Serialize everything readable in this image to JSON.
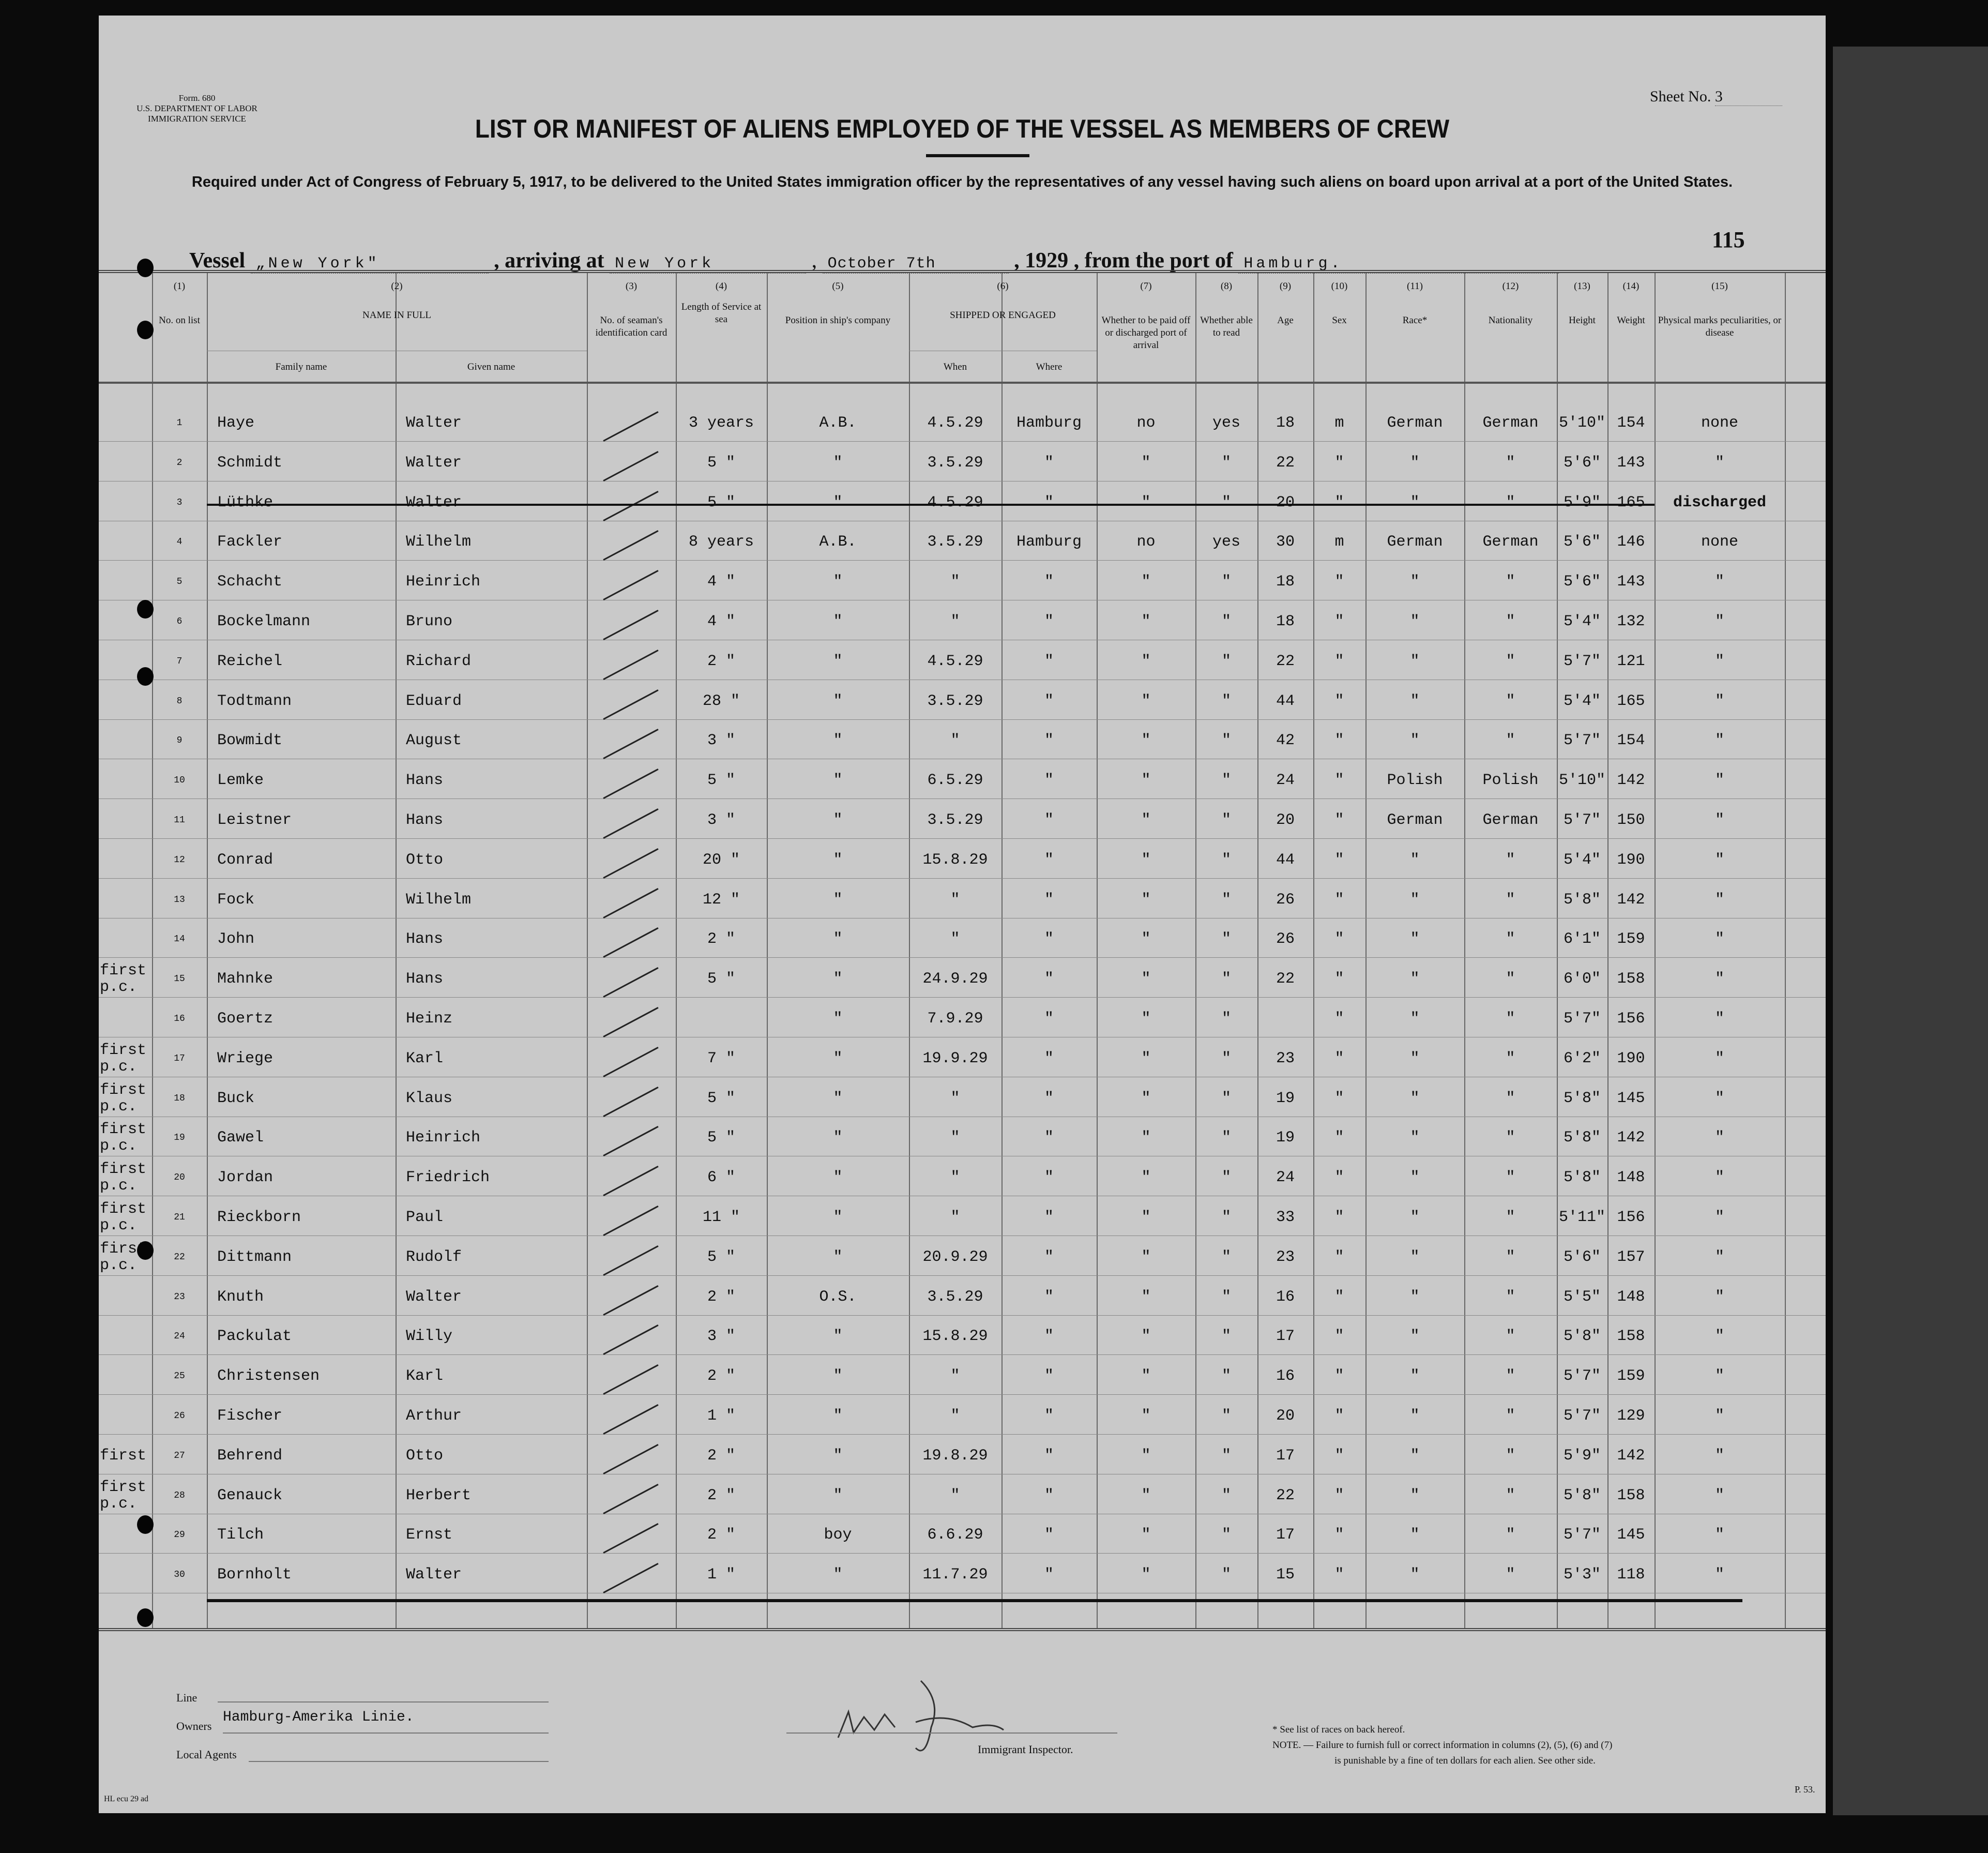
{
  "form": {
    "number": "Form. 680",
    "dept": "U.S. DEPARTMENT OF LABOR",
    "service": "IMMIGRATION SERVICE"
  },
  "sheet": {
    "label": "Sheet No.",
    "value": "3"
  },
  "title": "LIST OR MANIFEST OF ALIENS EMPLOYED OF THE VESSEL AS MEMBERS OF CREW",
  "subtitle": "Required under Act of Congress of February 5, 1917, to be delivered to the United States immigration officer by the representatives of any vessel having such aliens on board upon arrival at a port of the United States.",
  "page_number": "115",
  "vessel": {
    "label": "Vessel",
    "name": "„New York\"",
    "arriving_label": ", arriving at",
    "arriving": "New York",
    "comma": ",",
    "date": "October 7th",
    "year_label": ", 19",
    "year": "29",
    "from_label": ", from the port of",
    "port": "Hamburg."
  },
  "columns": [
    {
      "num": "(1)",
      "label": "No. on list"
    },
    {
      "num": "(2)",
      "label": "NAME IN FULL",
      "sub": [
        "Family name",
        "Given name"
      ]
    },
    {
      "num": "(3)",
      "label": "No. of seaman's identification card"
    },
    {
      "num": "(4)",
      "label": "Length of Service at sea"
    },
    {
      "num": "(5)",
      "label": "Position in ship's company"
    },
    {
      "num": "(6)",
      "label": "SHIPPED OR ENGAGED",
      "sub": [
        "When",
        "Where"
      ]
    },
    {
      "num": "(7)",
      "label": "Whether to be paid off or discharged port of arrival"
    },
    {
      "num": "(8)",
      "label": "Whether able to read"
    },
    {
      "num": "(9)",
      "label": "Age"
    },
    {
      "num": "(10)",
      "label": "Sex"
    },
    {
      "num": "(11)",
      "label": "Race*"
    },
    {
      "num": "(12)",
      "label": "Nationality"
    },
    {
      "num": "(13)",
      "label": "Height"
    },
    {
      "num": "(14)",
      "label": "Weight"
    },
    {
      "num": "(15)",
      "label": "Physical marks peculiarities, or disease"
    }
  ],
  "rows": [
    {
      "no": "1",
      "note": "",
      "family": "Haye",
      "given": "Walter",
      "length": "3 years",
      "position": "A.B.",
      "when": "4.5.29",
      "where": "Hamburg",
      "paid": "no",
      "read": "yes",
      "age": "18",
      "sex": "m",
      "race": "German",
      "nationality": "German",
      "height": "5'10\"",
      "weight": "154",
      "marks": "none"
    },
    {
      "no": "2",
      "note": "",
      "family": "Schmidt",
      "given": "Walter",
      "length": "5 \"",
      "position": "\"",
      "when": "3.5.29",
      "where": "\"",
      "paid": "\"",
      "read": "\"",
      "age": "22",
      "sex": "\"",
      "race": "\"",
      "nationality": "\"",
      "height": "5'6\"",
      "weight": "143",
      "marks": "\""
    },
    {
      "no": "3",
      "note": "",
      "family": "Lüthke",
      "given": "Walter",
      "length": "5 \"",
      "position": "\"",
      "when": "4.5.29",
      "where": "\"",
      "paid": "\"",
      "read": "\"",
      "age": "20",
      "sex": "\"",
      "race": "\"",
      "nationality": "\"",
      "height": "5'9\"",
      "weight": "165",
      "marks": "discharged",
      "struck": true
    },
    {
      "no": "4",
      "note": "",
      "family": "Fackler",
      "given": "Wilhelm",
      "length": "8 years",
      "position": "A.B.",
      "when": "3.5.29",
      "where": "Hamburg",
      "paid": "no",
      "read": "yes",
      "age": "30",
      "sex": "m",
      "race": "German",
      "nationality": "German",
      "height": "5'6\"",
      "weight": "146",
      "marks": "none"
    },
    {
      "no": "5",
      "note": "",
      "family": "Schacht",
      "given": "Heinrich",
      "length": "4 \"",
      "position": "\"",
      "when": "\"",
      "where": "\"",
      "paid": "\"",
      "read": "\"",
      "age": "18",
      "sex": "\"",
      "race": "\"",
      "nationality": "\"",
      "height": "5'6\"",
      "weight": "143",
      "marks": "\""
    },
    {
      "no": "6",
      "note": "",
      "family": "Bockelmann",
      "given": "Bruno",
      "length": "4 \"",
      "position": "\"",
      "when": "\"",
      "where": "\"",
      "paid": "\"",
      "read": "\"",
      "age": "18",
      "sex": "\"",
      "race": "\"",
      "nationality": "\"",
      "height": "5'4\"",
      "weight": "132",
      "marks": "\""
    },
    {
      "no": "7",
      "note": "",
      "family": "Reichel",
      "given": "Richard",
      "length": "2 \"",
      "position": "\"",
      "when": "4.5.29",
      "where": "\"",
      "paid": "\"",
      "read": "\"",
      "age": "22",
      "sex": "\"",
      "race": "\"",
      "nationality": "\"",
      "height": "5'7\"",
      "weight": "121",
      "marks": "\""
    },
    {
      "no": "8",
      "note": "",
      "family": "Todtmann",
      "given": "Eduard",
      "length": "28 \"",
      "position": "\"",
      "when": "3.5.29",
      "where": "\"",
      "paid": "\"",
      "read": "\"",
      "age": "44",
      "sex": "\"",
      "race": "\"",
      "nationality": "\"",
      "height": "5'4\"",
      "weight": "165",
      "marks": "\""
    },
    {
      "no": "9",
      "note": "",
      "family": "Bowmidt",
      "given": "August",
      "length": "3 \"",
      "position": "\"",
      "when": "\"",
      "where": "\"",
      "paid": "\"",
      "read": "\"",
      "age": "42",
      "sex": "\"",
      "race": "\"",
      "nationality": "\"",
      "height": "5'7\"",
      "weight": "154",
      "marks": "\""
    },
    {
      "no": "10",
      "note": "",
      "family": "Lemke",
      "given": "Hans",
      "length": "5 \"",
      "position": "\"",
      "when": "6.5.29",
      "where": "\"",
      "paid": "\"",
      "read": "\"",
      "age": "24",
      "sex": "\"",
      "race": "Polish",
      "nationality": "Polish",
      "height": "5'10\"",
      "weight": "142",
      "marks": "\""
    },
    {
      "no": "11",
      "note": "",
      "family": "Leistner",
      "given": "Hans",
      "length": "3 \"",
      "position": "\"",
      "when": "3.5.29",
      "where": "\"",
      "paid": "\"",
      "read": "\"",
      "age": "20",
      "sex": "\"",
      "race": "German",
      "nationality": "German",
      "height": "5'7\"",
      "weight": "150",
      "marks": "\""
    },
    {
      "no": "12",
      "note": "",
      "family": "Conrad",
      "given": "Otto",
      "length": "20 \"",
      "position": "\"",
      "when": "15.8.29",
      "where": "\"",
      "paid": "\"",
      "read": "\"",
      "age": "44",
      "sex": "\"",
      "race": "\"",
      "nationality": "\"",
      "height": "5'4\"",
      "weight": "190",
      "marks": "\""
    },
    {
      "no": "13",
      "note": "",
      "family": "Fock",
      "given": "Wilhelm",
      "length": "12 \"",
      "position": "\"",
      "when": "\"",
      "where": "\"",
      "paid": "\"",
      "read": "\"",
      "age": "26",
      "sex": "\"",
      "race": "\"",
      "nationality": "\"",
      "height": "5'8\"",
      "weight": "142",
      "marks": "\""
    },
    {
      "no": "14",
      "note": "",
      "family": "John",
      "given": "Hans",
      "length": "2 \"",
      "position": "\"",
      "when": "\"",
      "where": "\"",
      "paid": "\"",
      "read": "\"",
      "age": "26",
      "sex": "\"",
      "race": "\"",
      "nationality": "\"",
      "height": "6'1\"",
      "weight": "159",
      "marks": "\""
    },
    {
      "no": "15",
      "note": "first p.c.",
      "family": "Mahnke",
      "given": "Hans",
      "length": "5 \"",
      "position": "\"",
      "when": "24.9.29",
      "where": "\"",
      "paid": "\"",
      "read": "\"",
      "age": "22",
      "sex": "\"",
      "race": "\"",
      "nationality": "\"",
      "height": "6'0\"",
      "weight": "158",
      "marks": "\""
    },
    {
      "no": "16",
      "note": "",
      "family": "Goertz",
      "given": "Heinz",
      "length": "",
      "position": "\"",
      "when": "7.9.29",
      "where": "\"",
      "paid": "\"",
      "read": "\"",
      "age": "",
      "sex": "\"",
      "race": "\"",
      "nationality": "\"",
      "height": "5'7\"",
      "weight": "156",
      "marks": "\""
    },
    {
      "no": "17",
      "note": "first p.c.",
      "family": "Wriege",
      "given": "Karl",
      "length": "7 \"",
      "position": "\"",
      "when": "19.9.29",
      "where": "\"",
      "paid": "\"",
      "read": "\"",
      "age": "23",
      "sex": "\"",
      "race": "\"",
      "nationality": "\"",
      "height": "6'2\"",
      "weight": "190",
      "marks": "\""
    },
    {
      "no": "18",
      "note": "first p.c.",
      "family": "Buck",
      "given": "Klaus",
      "length": "5 \"",
      "position": "\"",
      "when": "\"",
      "where": "\"",
      "paid": "\"",
      "read": "\"",
      "age": "19",
      "sex": "\"",
      "race": "\"",
      "nationality": "\"",
      "height": "5'8\"",
      "weight": "145",
      "marks": "\""
    },
    {
      "no": "19",
      "note": "first p.c.",
      "family": "Gawel",
      "given": "Heinrich",
      "length": "5 \"",
      "position": "\"",
      "when": "\"",
      "where": "\"",
      "paid": "\"",
      "read": "\"",
      "age": "19",
      "sex": "\"",
      "race": "\"",
      "nationality": "\"",
      "height": "5'8\"",
      "weight": "142",
      "marks": "\""
    },
    {
      "no": "20",
      "note": "first p.c.",
      "family": "Jordan",
      "given": "Friedrich",
      "length": "6 \"",
      "position": "\"",
      "when": "\"",
      "where": "\"",
      "paid": "\"",
      "read": "\"",
      "age": "24",
      "sex": "\"",
      "race": "\"",
      "nationality": "\"",
      "height": "5'8\"",
      "weight": "148",
      "marks": "\""
    },
    {
      "no": "21",
      "note": "first p.c.",
      "family": "Rieckborn",
      "given": "Paul",
      "length": "11 \"",
      "position": "\"",
      "when": "\"",
      "where": "\"",
      "paid": "\"",
      "read": "\"",
      "age": "33",
      "sex": "\"",
      "race": "\"",
      "nationality": "\"",
      "height": "5'11\"",
      "weight": "156",
      "marks": "\""
    },
    {
      "no": "22",
      "note": "first p.c.",
      "family": "Dittmann",
      "given": "Rudolf",
      "length": "5 \"",
      "position": "\"",
      "when": "20.9.29",
      "where": "\"",
      "paid": "\"",
      "read": "\"",
      "age": "23",
      "sex": "\"",
      "race": "\"",
      "nationality": "\"",
      "height": "5'6\"",
      "weight": "157",
      "marks": "\""
    },
    {
      "no": "23",
      "note": "",
      "family": "Knuth",
      "given": "Walter",
      "length": "2 \"",
      "position": "O.S.",
      "when": "3.5.29",
      "where": "\"",
      "paid": "\"",
      "read": "\"",
      "age": "16",
      "sex": "\"",
      "race": "\"",
      "nationality": "\"",
      "height": "5'5\"",
      "weight": "148",
      "marks": "\""
    },
    {
      "no": "24",
      "note": "",
      "family": "Packulat",
      "given": "Willy",
      "length": "3 \"",
      "position": "\"",
      "when": "15.8.29",
      "where": "\"",
      "paid": "\"",
      "read": "\"",
      "age": "17",
      "sex": "\"",
      "race": "\"",
      "nationality": "\"",
      "height": "5'8\"",
      "weight": "158",
      "marks": "\""
    },
    {
      "no": "25",
      "note": "",
      "family": "Christensen",
      "given": "Karl",
      "length": "2 \"",
      "position": "\"",
      "when": "\"",
      "where": "\"",
      "paid": "\"",
      "read": "\"",
      "age": "16",
      "sex": "\"",
      "race": "\"",
      "nationality": "\"",
      "height": "5'7\"",
      "weight": "159",
      "marks": "\""
    },
    {
      "no": "26",
      "note": "",
      "family": "Fischer",
      "given": "Arthur",
      "length": "1 \"",
      "position": "\"",
      "when": "\"",
      "where": "\"",
      "paid": "\"",
      "read": "\"",
      "age": "20",
      "sex": "\"",
      "race": "\"",
      "nationality": "\"",
      "height": "5'7\"",
      "weight": "129",
      "marks": "\""
    },
    {
      "no": "27",
      "note": "first",
      "family": "Behrend",
      "given": "Otto",
      "length": "2 \"",
      "position": "\"",
      "when": "19.8.29",
      "where": "\"",
      "paid": "\"",
      "read": "\"",
      "age": "17",
      "sex": "\"",
      "race": "\"",
      "nationality": "\"",
      "height": "5'9\"",
      "weight": "142",
      "marks": "\""
    },
    {
      "no": "28",
      "note": "first p.c.",
      "family": "Genauck",
      "given": "Herbert",
      "length": "2 \"",
      "position": "\"",
      "when": "\"",
      "where": "\"",
      "paid": "\"",
      "read": "\"",
      "age": "22",
      "sex": "\"",
      "race": "\"",
      "nationality": "\"",
      "height": "5'8\"",
      "weight": "158",
      "marks": "\""
    },
    {
      "no": "29",
      "note": "",
      "family": "Tilch",
      "given": "Ernst",
      "length": "2 \"",
      "position": "boy",
      "when": "6.6.29",
      "where": "\"",
      "paid": "\"",
      "read": "\"",
      "age": "17",
      "sex": "\"",
      "race": "\"",
      "nationality": "\"",
      "height": "5'7\"",
      "weight": "145",
      "marks": "\""
    },
    {
      "no": "30",
      "note": "",
      "family": "Bornholt",
      "given": "Walter",
      "length": "1 \"",
      "position": "\"",
      "when": "11.7.29",
      "where": "\"",
      "paid": "\"",
      "read": "\"",
      "age": "15",
      "sex": "\"",
      "race": "\"",
      "nationality": "\"",
      "height": "5'3\"",
      "weight": "118",
      "marks": "\""
    }
  ],
  "footer": {
    "line_label": "Line",
    "owners_label": "Owners",
    "owners": "Hamburg-Amerika Linie.",
    "agents_label": "Local Agents",
    "signature": "Walter Larsen",
    "inspector_label": "Immigrant Inspector.",
    "note1": "* See list of races on back hereof.",
    "note2": "NOTE. — Failure to furnish full or correct information in columns (2), (5), (6) and (7)",
    "note3": "is punishable by a fine of ten dollars for each alien.  See other side.",
    "code_left": "HL ecu 29 ad",
    "code_right": "P. 53."
  }
}
